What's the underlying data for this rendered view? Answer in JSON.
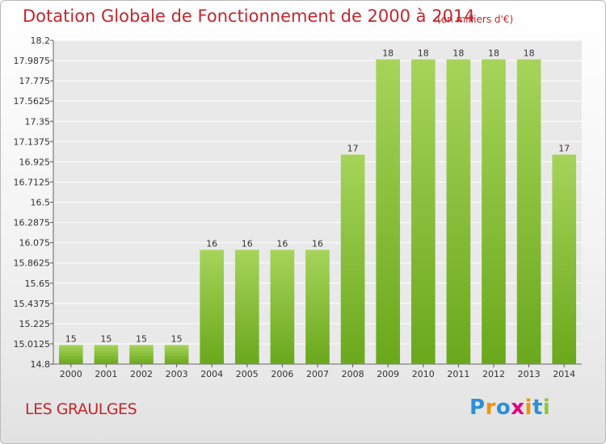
{
  "header": {
    "title": "Dotation Globale de Fonctionnement de 2000 à 2014",
    "subtitle": "(en milliers d'€)"
  },
  "footer": {
    "commune": "LES GRAULGES",
    "logo_text": "Proxiti"
  },
  "colors": {
    "title": "#c1272d",
    "bar_light": "#a6d45a",
    "bar_dark": "#6aa81c",
    "logo": [
      "#2e8fd8",
      "#f29400",
      "#2e8fd8",
      "#e4007d",
      "#f29400",
      "#2e8fd8",
      "#8cc63f"
    ]
  },
  "chart_data": {
    "type": "bar",
    "categories": [
      "2000",
      "2001",
      "2002",
      "2003",
      "2004",
      "2005",
      "2006",
      "2007",
      "2008",
      "2009",
      "2010",
      "2011",
      "2012",
      "2013",
      "2014"
    ],
    "values": [
      15,
      15,
      15,
      15,
      16,
      16,
      16,
      16,
      17,
      18,
      18,
      18,
      18,
      18,
      17
    ],
    "data_labels": [
      "15",
      "15",
      "15",
      "15",
      "16",
      "16",
      "16",
      "16",
      "17",
      "18",
      "18",
      "18",
      "18",
      "18",
      "17"
    ],
    "y_ticks": [
      "14.8",
      "15.0125",
      "15.225",
      "15.4375",
      "15.65",
      "15.8625",
      "16.075",
      "16.2875",
      "16.5",
      "16.7125",
      "16.925",
      "17.1375",
      "17.35",
      "17.5625",
      "17.775",
      "17.9875",
      "18.2"
    ],
    "ylim": [
      14.8,
      18.2
    ],
    "grid": true,
    "legend": "none",
    "bar_value_offset": 14.8
  }
}
